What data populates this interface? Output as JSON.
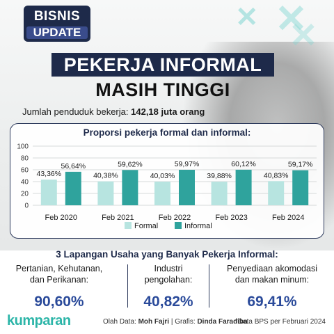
{
  "badge": {
    "line1": "BISNIS",
    "line2": "UPDATE"
  },
  "title": {
    "line1": "PEKERJA INFORMAL",
    "line2": "MASIH TINGGI"
  },
  "subtitle": {
    "label": "Jumlah penduduk bekerja:",
    "value": "142,18 juta orang"
  },
  "colors": {
    "formal": "#b7e4e0",
    "informal": "#2fa39d",
    "navy": "#1e2a4a",
    "accent_blue": "#2a4a9a",
    "brand": "#2cb5a8"
  },
  "chart_data": {
    "type": "bar",
    "title": "Proporsi pekerja formal dan informal:",
    "categories": [
      "Feb 2020",
      "Feb 2021",
      "Feb 2022",
      "Feb 2023",
      "Feb 2024"
    ],
    "series": [
      {
        "name": "Formal",
        "values": [
          43.36,
          40.38,
          40.03,
          39.88,
          40.83
        ],
        "labels": [
          "43,36%",
          "40,38%",
          "40,03%",
          "39,88%",
          "40,83%"
        ]
      },
      {
        "name": "Informal",
        "values": [
          56.64,
          59.62,
          59.97,
          60.12,
          59.17
        ],
        "labels": [
          "56,64%",
          "59,62%",
          "59,97%",
          "60,12%",
          "59,17%"
        ]
      }
    ],
    "ylim": [
      0,
      100
    ],
    "yticks": [
      "0",
      "20",
      "40",
      "60",
      "80",
      "100"
    ],
    "grid": true,
    "legend": "bottom-center"
  },
  "sectors": {
    "title": "3 Lapangan Usaha yang Banyak Pekerja Informal:",
    "items": [
      {
        "line1": "Pertanian, Kehutanan,",
        "line2": "dan Perikanan:",
        "value": "90,60%"
      },
      {
        "line1": "Industri",
        "line2": "pengolahan:",
        "value": "40,82%"
      },
      {
        "line1": "Penyediaan akomodasi",
        "line2": "dan makan minum:",
        "value": "69,41%"
      }
    ]
  },
  "footer": {
    "logo": "kumparan",
    "data_label": "Olah Data:",
    "data_by": "Moh Fajri",
    "graphic_label": "| Grafis:",
    "graphic_by": "Dinda Faradiba",
    "source": "*Data BPS per Februari 2024"
  }
}
